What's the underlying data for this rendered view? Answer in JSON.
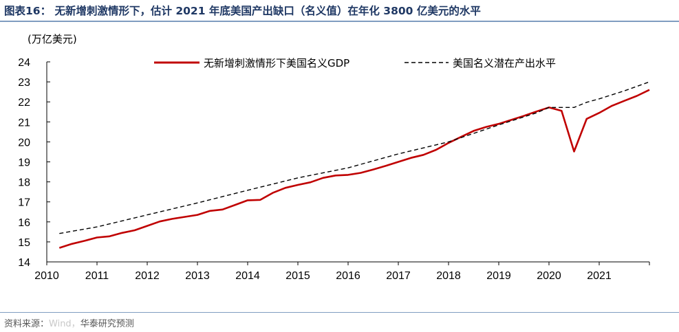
{
  "header": {
    "title": "图表16：   无新增刺激情形下，估计 2021 年底美国产出缺口（名义值）在年化 3800 亿美元的水平"
  },
  "footer": {
    "source_prefix": "资料来源：",
    "source_faded": "Wind，",
    "source_rest": "华泰研究预测"
  },
  "chart_data": {
    "type": "line",
    "title": "",
    "unit_label": "(万亿美元)",
    "xlabel": "",
    "ylabel": "(万亿美元)",
    "xlim": [
      2010,
      2022
    ],
    "ylim": [
      14,
      24
    ],
    "x_ticks": [
      "2010",
      "2011",
      "2012",
      "2013",
      "2014",
      "2015",
      "2016",
      "2017",
      "2018",
      "2019",
      "2020",
      "2021"
    ],
    "y_ticks": [
      "14",
      "15",
      "16",
      "17",
      "18",
      "19",
      "20",
      "21",
      "22",
      "23",
      "24"
    ],
    "legend_position": "top-right",
    "series": [
      {
        "name": "无新增刺激情形下美国名义GDP",
        "color": "#c00000",
        "style": "solid",
        "x": [
          2010.25,
          2010.5,
          2010.75,
          2011.0,
          2011.25,
          2011.5,
          2011.75,
          2012.0,
          2012.25,
          2012.5,
          2012.75,
          2013.0,
          2013.25,
          2013.5,
          2013.75,
          2014.0,
          2014.25,
          2014.5,
          2014.75,
          2015.0,
          2015.25,
          2015.5,
          2015.75,
          2016.0,
          2016.25,
          2016.5,
          2016.75,
          2017.0,
          2017.25,
          2017.5,
          2017.75,
          2018.0,
          2018.25,
          2018.5,
          2018.75,
          2019.0,
          2019.25,
          2019.5,
          2019.75,
          2020.0,
          2020.25,
          2020.5,
          2020.75,
          2021.0,
          2021.25,
          2021.5,
          2021.75,
          2022.0
        ],
        "values": [
          14.7,
          14.9,
          15.05,
          15.22,
          15.28,
          15.45,
          15.58,
          15.8,
          16.02,
          16.15,
          16.25,
          16.35,
          16.55,
          16.62,
          16.85,
          17.08,
          17.1,
          17.45,
          17.7,
          17.85,
          17.98,
          18.2,
          18.32,
          18.35,
          18.45,
          18.62,
          18.8,
          19.0,
          19.2,
          19.35,
          19.6,
          19.95,
          20.25,
          20.55,
          20.75,
          20.9,
          21.1,
          21.3,
          21.52,
          21.72,
          21.55,
          19.52,
          21.15,
          21.45,
          21.8,
          22.05,
          22.3,
          22.6
        ]
      },
      {
        "name": "美国名义潜在产出水平",
        "color": "#000000",
        "style": "dashed",
        "x": [
          2010.25,
          2011.0,
          2012.0,
          2013.0,
          2014.0,
          2015.0,
          2016.0,
          2017.0,
          2018.0,
          2019.0,
          2019.75,
          2020.0,
          2020.5,
          2020.75,
          2021.0,
          2021.5,
          2022.0
        ],
        "values": [
          15.42,
          15.75,
          16.35,
          16.95,
          17.58,
          18.2,
          18.7,
          19.4,
          20.0,
          20.85,
          21.45,
          21.72,
          21.72,
          21.98,
          22.15,
          22.55,
          23.0
        ]
      }
    ]
  }
}
